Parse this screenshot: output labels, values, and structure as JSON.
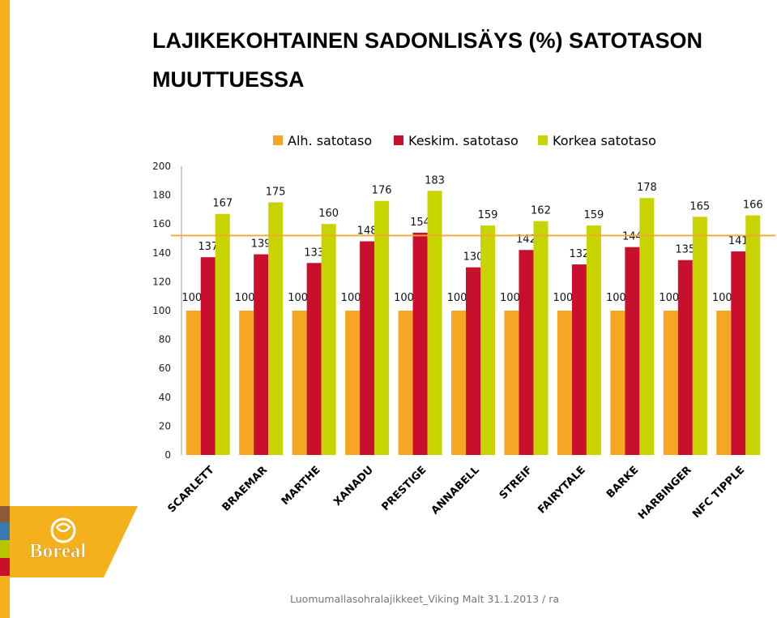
{
  "slide": {
    "title": "LAJIKEKOHTAINEN SADONLISÄYS (%) SATOTASON MUUTTUESSA",
    "footer": "Luomumallasohralajikkeet_Viking Malt 31.1.2013 / ra",
    "logo_text": "Boreal",
    "colors": {
      "stripe": "#f5b11c",
      "logo_bg": "#f5b11c"
    }
  },
  "chart_data": {
    "type": "bar",
    "title": "",
    "xlabel": "",
    "ylabel": "",
    "ylim": [
      0,
      200
    ],
    "yticks": [
      0,
      20,
      40,
      60,
      80,
      100,
      120,
      140,
      160,
      180,
      200
    ],
    "reference_line": {
      "value": 152,
      "color": "#f0a830"
    },
    "legend_position": "top",
    "categories": [
      "SCARLETT",
      "BRAEMAR",
      "MARTHE",
      "XANADU",
      "PRESTIGE",
      "ANNABELL",
      "STREIF",
      "FAIRYTALE",
      "BARKE",
      "HARBINGER",
      "NFC TIPPLE"
    ],
    "series": [
      {
        "name": "Alh. satotaso",
        "color": "#f5a623",
        "values": [
          100,
          100,
          100,
          100,
          100,
          100,
          100,
          100,
          100,
          100,
          100
        ]
      },
      {
        "name": "Keskim. satotaso",
        "color": "#c8102e",
        "values": [
          137,
          139,
          133,
          148,
          154,
          130,
          142,
          132,
          144,
          135,
          141
        ]
      },
      {
        "name": "Korkea satotaso",
        "color": "#c8d400",
        "values": [
          167,
          175,
          160,
          176,
          183,
          159,
          162,
          159,
          178,
          165,
          166
        ]
      }
    ]
  }
}
